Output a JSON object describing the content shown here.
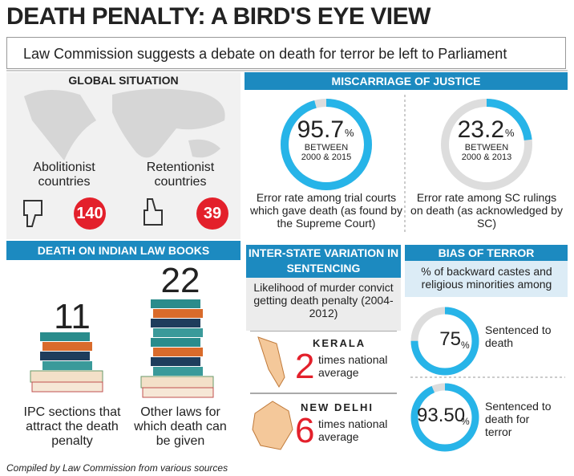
{
  "title": "DEATH PENALTY: A BIRD'S EYE VIEW",
  "subtitle": "Law Commission suggests a debate on death for terror be left to Parliament",
  "global_situation": {
    "heading": "GLOBAL SITUATION",
    "groups": [
      {
        "label": "Abolitionist countries",
        "value": 140
      },
      {
        "label": "Retentionist countries",
        "value": 39
      }
    ]
  },
  "miscarriage_of_justice": {
    "heading": "MISCARRIAGE OF JUSTICE",
    "items": [
      {
        "value": 95.7,
        "unit": "%",
        "period": "BETWEEN 2000 & 2015",
        "description": "Error rate among trial courts which gave death (as found by the Supreme Court)"
      },
      {
        "value": 23.2,
        "unit": "%",
        "period": "BETWEEN 2000 & 2013",
        "description": "Error rate among SC rulings on death (as acknowledged by SC)"
      }
    ]
  },
  "indian_law_books": {
    "heading": "DEATH ON INDIAN LAW BOOKS",
    "items": [
      {
        "value": 11,
        "description": "IPC sections that attract the death penalty"
      },
      {
        "value": 22,
        "description": "Other laws for which death can be given"
      }
    ]
  },
  "inter_state_variation": {
    "heading": "INTER-STATE VARIATION IN SENTENCING",
    "description": "Likelihood of murder convict getting death penalty (2004-2012)",
    "items": [
      {
        "state": "KERALA",
        "value": 2,
        "description": "times national average"
      },
      {
        "state": "NEW DELHI",
        "value": 6,
        "description": "times national average"
      }
    ]
  },
  "bias_of_terror": {
    "heading": "BIAS OF TERROR",
    "description": "% of backward castes and religious minorities among",
    "items": [
      {
        "value": 75,
        "unit": "%",
        "description": "Sentenced to death"
      },
      {
        "value": 93.5,
        "value_label": "93.50",
        "unit": "%",
        "description": "Sentenced to death for terror"
      }
    ]
  },
  "footer": "Compiled by Law Commission from various sources"
}
